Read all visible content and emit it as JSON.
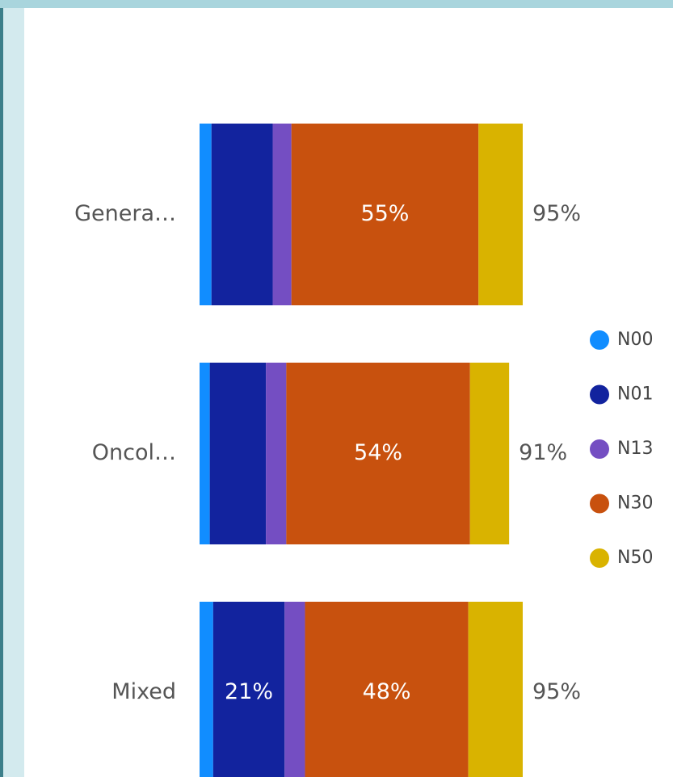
{
  "chart_data": {
    "type": "stacked-bar",
    "categories": [
      "Genera…",
      "Oncol…",
      "Mixed"
    ],
    "series": [
      {
        "name": "N00",
        "color": "#118dff",
        "values": [
          3.5,
          3,
          4
        ],
        "value_labels": [
          null,
          null,
          null
        ]
      },
      {
        "name": "N01",
        "color": "#12239e",
        "values": [
          18,
          16.5,
          21
        ],
        "value_labels": [
          null,
          null,
          "21%"
        ]
      },
      {
        "name": "N13",
        "color": "#744ec2",
        "values": [
          5.5,
          6,
          6
        ],
        "value_labels": [
          null,
          null,
          null
        ]
      },
      {
        "name": "N30",
        "color": "#c8510e",
        "values": [
          55,
          54,
          48
        ],
        "value_labels": [
          "55%",
          "54%",
          "48%"
        ]
      },
      {
        "name": "N50",
        "color": "#d9b300",
        "values": [
          13,
          11.5,
          16
        ],
        "value_labels": [
          null,
          null,
          null
        ]
      }
    ],
    "totals": [
      95,
      91,
      95
    ],
    "total_labels": [
      "95%",
      "91%",
      "95%"
    ],
    "legend": "right"
  }
}
